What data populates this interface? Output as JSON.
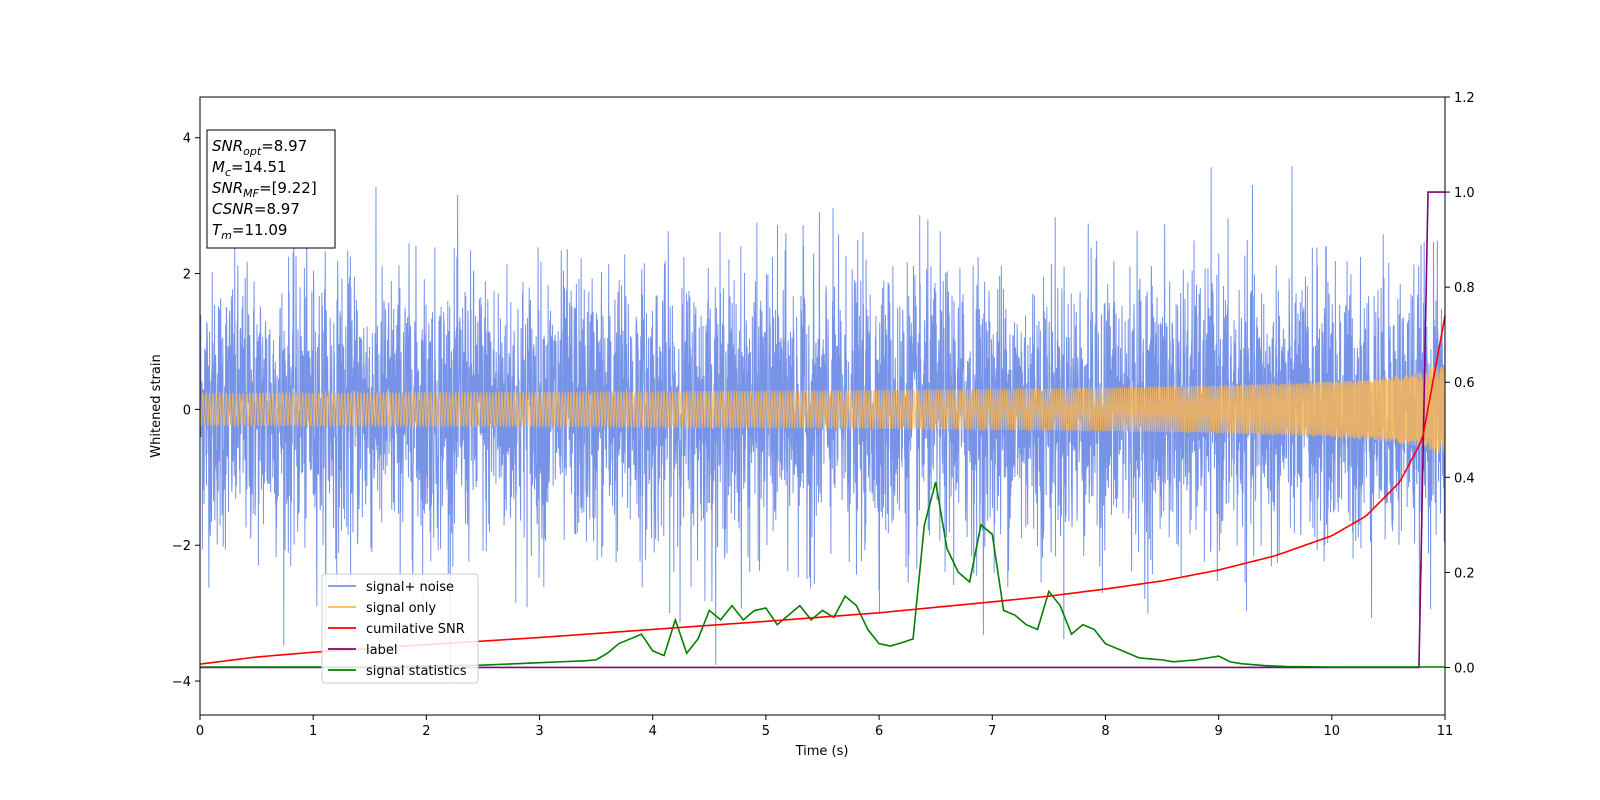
{
  "chart_data": {
    "type": "line",
    "title": "",
    "xlabel": "Time (s)",
    "ylabel": "Whitened strain",
    "xlim": [
      0,
      11
    ],
    "ylim_left": [
      -4.5,
      4.6
    ],
    "ylim_right": [
      -0.1,
      1.2
    ],
    "x_ticks": [
      0,
      1,
      2,
      3,
      4,
      5,
      6,
      7,
      8,
      9,
      10,
      11
    ],
    "y_left_ticks": [
      -4,
      -2,
      0,
      2,
      4
    ],
    "y_right_ticks": [
      0.0,
      0.2,
      0.4,
      0.6,
      0.8,
      1.0,
      1.2
    ],
    "grid": false,
    "legend_position": "lower-left",
    "info_box": {
      "lines": [
        {
          "main": "SNR",
          "sub": "opt",
          "value": "=8.97"
        },
        {
          "main": "M",
          "sub": "c",
          "value": "=14.51"
        },
        {
          "main": "SNR",
          "sub": "MF",
          "value": "=[9.22]"
        },
        {
          "main": "CSNR",
          "sub": "",
          "value": "=8.97"
        },
        {
          "main": "T",
          "sub": "m",
          "value": "=11.09"
        }
      ]
    },
    "series": [
      {
        "name": "signal+ noise",
        "axis": "left",
        "color": "#4a6fe0",
        "opacity": 0.75,
        "kind": "gaussian noise, std ≈ 1.0, peaks ≈ ±4",
        "std": 1.0,
        "peak_abs": 4.15
      },
      {
        "name": "signal only",
        "axis": "left",
        "color": "#ffb84d",
        "kind": "chirp",
        "amplitude_start": 0.02,
        "amplitude_end": 0.65,
        "merger_time": 11.09
      },
      {
        "name": "cumilative SNR",
        "axis": "right",
        "color": "#ff0000",
        "x": [
          0,
          0.5,
          1,
          2,
          3,
          4,
          5,
          6,
          7,
          7.5,
          8,
          8.5,
          9,
          9.5,
          10,
          10.3,
          10.6,
          10.8,
          11
        ],
        "y": [
          0.007,
          0.022,
          0.032,
          0.048,
          0.063,
          0.08,
          0.097,
          0.115,
          0.138,
          0.15,
          0.165,
          0.182,
          0.205,
          0.235,
          0.277,
          0.318,
          0.39,
          0.48,
          0.74
        ]
      },
      {
        "name": "label",
        "axis": "right",
        "color": "#800080",
        "x": [
          0,
          10.77,
          10.85,
          11
        ],
        "y": [
          0,
          0,
          1,
          1
        ]
      },
      {
        "name": "signal statistics",
        "axis": "right",
        "color": "#008000",
        "x": [
          0,
          0.5,
          1,
          1.5,
          2,
          2.5,
          2.8,
          3,
          3.2,
          3.4,
          3.5,
          3.6,
          3.7,
          3.8,
          3.9,
          4.0,
          4.1,
          4.2,
          4.3,
          4.4,
          4.5,
          4.6,
          4.7,
          4.8,
          4.9,
          5.0,
          5.1,
          5.2,
          5.3,
          5.4,
          5.5,
          5.6,
          5.7,
          5.8,
          5.9,
          6.0,
          6.1,
          6.2,
          6.3,
          6.4,
          6.5,
          6.6,
          6.7,
          6.8,
          6.9,
          7.0,
          7.1,
          7.2,
          7.3,
          7.4,
          7.5,
          7.6,
          7.7,
          7.8,
          7.9,
          8.0,
          8.1,
          8.2,
          8.3,
          8.4,
          8.5,
          8.6,
          8.8,
          9.0,
          9.1,
          9.2,
          9.4,
          9.6,
          10.0,
          10.5,
          10.8,
          11.0
        ],
        "y": [
          0.001,
          0.001,
          0.001,
          0.001,
          0.003,
          0.005,
          0.008,
          0.01,
          0.012,
          0.014,
          0.016,
          0.03,
          0.05,
          0.06,
          0.07,
          0.035,
          0.025,
          0.1,
          0.03,
          0.06,
          0.12,
          0.1,
          0.13,
          0.1,
          0.12,
          0.125,
          0.09,
          0.11,
          0.13,
          0.1,
          0.12,
          0.105,
          0.15,
          0.13,
          0.08,
          0.05,
          0.045,
          0.052,
          0.06,
          0.3,
          0.39,
          0.25,
          0.2,
          0.18,
          0.3,
          0.28,
          0.12,
          0.11,
          0.09,
          0.08,
          0.16,
          0.13,
          0.07,
          0.09,
          0.08,
          0.05,
          0.04,
          0.03,
          0.02,
          0.018,
          0.016,
          0.012,
          0.016,
          0.024,
          0.012,
          0.008,
          0.004,
          0.002,
          0.001,
          0.001,
          0.001,
          0.001
        ]
      }
    ]
  }
}
